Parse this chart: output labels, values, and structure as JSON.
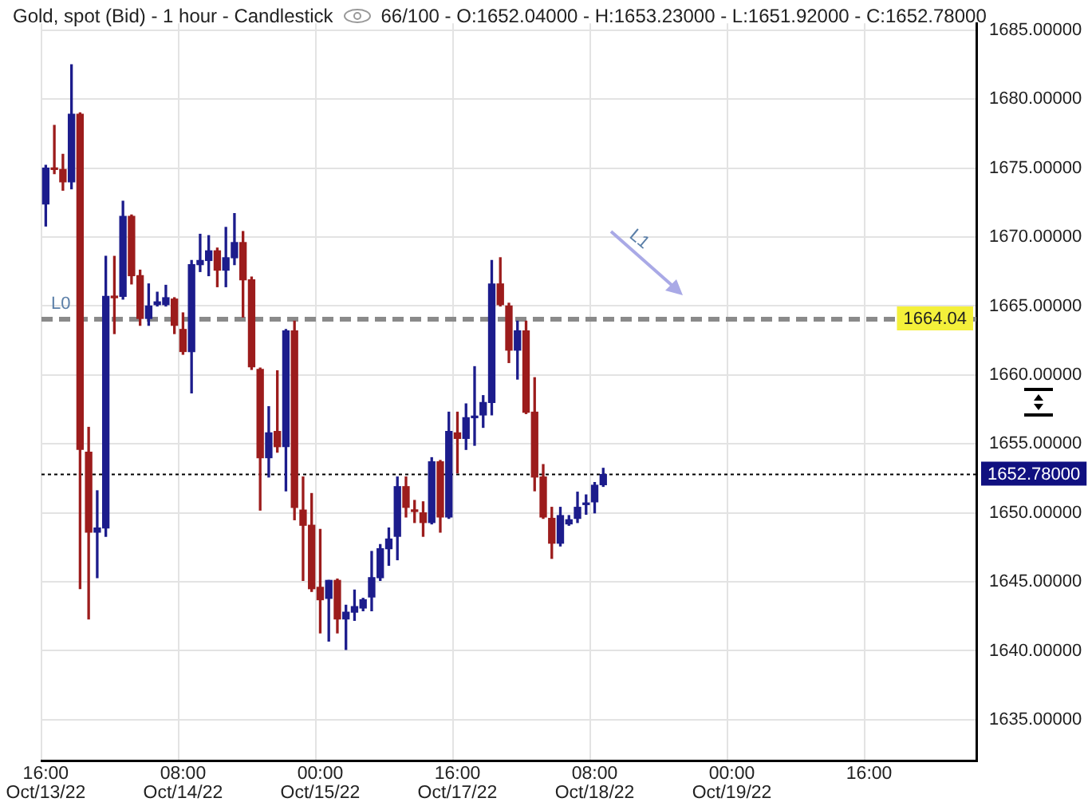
{
  "chart_data": {
    "type": "candlestick",
    "title": "Gold, spot (Bid) - 1 hour - Candlestick",
    "subtitle": "66/100 - O:1652.04000 - H:1653.23000 - L:1651.92000 - C:1652.78000",
    "categories": [
      "16:00 Oct/13/22",
      null,
      null,
      null,
      null,
      null,
      null,
      null,
      null,
      null,
      null,
      null,
      null,
      null,
      null,
      null,
      "08:00 Oct/14/22",
      null,
      null,
      null,
      null,
      null,
      null,
      null,
      null,
      null,
      null,
      null,
      null,
      null,
      null,
      null,
      "00:00 Oct/15/22",
      null,
      null,
      null,
      null,
      null,
      null,
      null,
      null,
      null,
      null,
      null,
      null,
      null,
      null,
      null,
      "16:00 Oct/17/22",
      null,
      null,
      null,
      null,
      null,
      null,
      null,
      null,
      null,
      null,
      null,
      null,
      null,
      null,
      null,
      "08:00 Oct/18/22",
      null,
      null,
      null,
      null,
      null,
      null,
      null,
      null,
      null,
      null,
      null,
      null,
      null,
      null,
      null,
      "00:00 Oct/19/22",
      null,
      null,
      null,
      null,
      null,
      null,
      null,
      null,
      null,
      null,
      null,
      null,
      null,
      null,
      null,
      "16:00",
      null,
      null,
      null,
      null,
      null,
      null,
      null,
      null,
      null,
      null,
      null,
      null
    ],
    "ohlc": [
      [
        1672.4,
        1675.2,
        1670.8,
        1675.0
      ],
      [
        1675.0,
        1678.1,
        1674.6,
        1674.9
      ],
      [
        1674.9,
        1676.0,
        1673.4,
        1674.0
      ],
      [
        1674.0,
        1682.5,
        1673.5,
        1678.9
      ],
      [
        1678.9,
        1679.0,
        1644.5,
        1654.6
      ],
      [
        1654.4,
        1656.2,
        1642.3,
        1648.6
      ],
      [
        1648.6,
        1651.6,
        1645.3,
        1648.9
      ],
      [
        1648.9,
        1668.6,
        1648.3,
        1665.7
      ],
      [
        1665.7,
        1668.6,
        1663.0,
        1665.6
      ],
      [
        1665.7,
        1672.6,
        1665.5,
        1671.5
      ],
      [
        1671.5,
        1671.6,
        1666.6,
        1667.2
      ],
      [
        1667.2,
        1667.6,
        1663.6,
        1664.1
      ],
      [
        1664.1,
        1666.6,
        1663.6,
        1665.0
      ],
      [
        1665.1,
        1666.0,
        1665.0,
        1665.3
      ],
      [
        1665.1,
        1666.5,
        1665.0,
        1665.6
      ],
      [
        1665.5,
        1665.6,
        1663.0,
        1663.6
      ],
      [
        1663.3,
        1664.5,
        1661.5,
        1661.7
      ],
      [
        1661.7,
        1668.3,
        1658.7,
        1668.0
      ],
      [
        1668.0,
        1670.2,
        1667.5,
        1668.3
      ],
      [
        1668.3,
        1670.1,
        1667.2,
        1669.0
      ],
      [
        1669.0,
        1669.2,
        1666.4,
        1667.6
      ],
      [
        1667.6,
        1670.7,
        1666.4,
        1668.5
      ],
      [
        1668.5,
        1671.7,
        1668.0,
        1669.6
      ],
      [
        1669.6,
        1670.4,
        1664.2,
        1666.9
      ],
      [
        1666.9,
        1667.1,
        1660.4,
        1660.6
      ],
      [
        1660.4,
        1660.5,
        1650.2,
        1654.0
      ],
      [
        1654.0,
        1657.7,
        1652.6,
        1655.8
      ],
      [
        1655.9,
        1660.3,
        1654.4,
        1654.8
      ],
      [
        1654.8,
        1663.3,
        1651.6,
        1663.2
      ],
      [
        1663.2,
        1663.9,
        1649.5,
        1650.4
      ],
      [
        1650.2,
        1652.6,
        1645.1,
        1649.1
      ],
      [
        1649.1,
        1651.4,
        1644.3,
        1644.5
      ],
      [
        1644.6,
        1648.8,
        1641.3,
        1643.7
      ],
      [
        1643.8,
        1645.1,
        1640.7,
        1645.1
      ],
      [
        1645.1,
        1645.2,
        1641.3,
        1642.3
      ],
      [
        1642.3,
        1643.3,
        1640.1,
        1642.8
      ],
      [
        1642.8,
        1644.4,
        1642.2,
        1643.2
      ],
      [
        1643.1,
        1643.8,
        1642.9,
        1643.7
      ],
      [
        1643.9,
        1647.2,
        1642.9,
        1645.3
      ],
      [
        1645.3,
        1647.7,
        1645.1,
        1647.4
      ],
      [
        1647.4,
        1648.9,
        1646.2,
        1648.1
      ],
      [
        1648.3,
        1652.6,
        1646.6,
        1651.9
      ],
      [
        1651.9,
        1652.6,
        1649.7,
        1650.4
      ],
      [
        1650.2,
        1650.9,
        1649.3,
        1650.1
      ],
      [
        1650.0,
        1650.8,
        1648.3,
        1649.3
      ],
      [
        1649.3,
        1654.0,
        1649.2,
        1653.7
      ],
      [
        1653.7,
        1653.8,
        1648.6,
        1649.7
      ],
      [
        1649.7,
        1657.3,
        1649.6,
        1655.9
      ],
      [
        1655.8,
        1657.3,
        1652.9,
        1655.4
      ],
      [
        1655.4,
        1657.9,
        1654.6,
        1656.9
      ],
      [
        1656.9,
        1660.6,
        1654.9,
        1657.0
      ],
      [
        1657.1,
        1658.5,
        1656.2,
        1658.0
      ],
      [
        1658.0,
        1668.3,
        1657.1,
        1666.6
      ],
      [
        1666.6,
        1668.5,
        1665.0,
        1665.1
      ],
      [
        1665.0,
        1665.2,
        1660.9,
        1661.8
      ],
      [
        1661.8,
        1663.9,
        1659.7,
        1663.2
      ],
      [
        1663.2,
        1663.9,
        1657.2,
        1657.3
      ],
      [
        1657.3,
        1659.8,
        1651.6,
        1652.6
      ],
      [
        1652.6,
        1653.5,
        1649.6,
        1649.7
      ],
      [
        1649.6,
        1650.4,
        1646.7,
        1647.8
      ],
      [
        1647.8,
        1650.4,
        1647.6,
        1649.8
      ],
      [
        1649.2,
        1649.8,
        1649.1,
        1649.5
      ],
      [
        1649.6,
        1651.5,
        1649.3,
        1650.4
      ],
      [
        1650.6,
        1651.3,
        1649.9,
        1650.7
      ],
      [
        1650.8,
        1652.2,
        1650.0,
        1652.0
      ],
      [
        1652.04,
        1653.23,
        1651.92,
        1652.78
      ],
      null,
      null,
      null,
      null,
      null,
      null,
      null,
      null,
      null,
      null,
      null,
      null,
      null,
      null,
      null,
      null,
      null,
      null,
      null,
      null,
      null,
      null,
      null,
      null,
      null,
      null,
      null,
      null,
      null,
      null,
      null,
      null,
      null,
      null,
      null,
      null,
      null,
      null,
      null,
      null,
      null,
      null,
      null
    ],
    "colors": [
      "#1c1c8c",
      "#9c1c1c",
      "#9c1c1c",
      "#1c1c8c",
      "#9c1c1c",
      "#9c1c1c",
      "#1c1c8c",
      "#1c1c8c",
      "#9c1c1c",
      "#1c1c8c",
      "#9c1c1c",
      "#9c1c1c",
      "#1c1c8c",
      "#1c1c8c",
      "#1c1c8c",
      "#9c1c1c",
      "#9c1c1c",
      "#1c1c8c",
      "#1c1c8c",
      "#1c1c8c",
      "#9c1c1c",
      "#1c1c8c",
      "#1c1c8c",
      "#9c1c1c",
      "#9c1c1c",
      "#9c1c1c",
      "#1c1c8c",
      "#9c1c1c",
      "#1c1c8c",
      "#9c1c1c",
      "#9c1c1c",
      "#9c1c1c",
      "#9c1c1c",
      "#1c1c8c",
      "#9c1c1c",
      "#1c1c8c",
      "#1c1c8c",
      "#1c1c8c",
      "#1c1c8c",
      "#1c1c8c",
      "#1c1c8c",
      "#1c1c8c",
      "#9c1c1c",
      "#9c1c1c",
      "#9c1c1c",
      "#1c1c8c",
      "#9c1c1c",
      "#1c1c8c",
      "#9c1c1c",
      "#1c1c8c",
      "#1c1c8c",
      "#1c1c8c",
      "#1c1c8c",
      "#9c1c1c",
      "#9c1c1c",
      "#1c1c8c",
      "#9c1c1c",
      "#9c1c1c",
      "#9c1c1c",
      "#9c1c1c",
      "#1c1c8c",
      "#1c1c8c",
      "#1c1c8c",
      "#1c1c8c",
      "#1c1c8c",
      "#1c1c8c",
      null,
      null,
      null,
      null,
      null,
      null,
      null,
      null,
      null,
      null,
      null,
      null,
      null,
      null,
      null,
      null,
      null,
      null,
      null,
      null,
      null,
      null,
      null,
      null,
      null,
      null,
      null,
      null,
      null,
      null,
      null,
      null,
      null,
      null,
      null,
      null,
      null,
      null,
      null,
      null,
      null,
      null,
      null
    ],
    "ylim": [
      1632,
      1685.5
    ],
    "yticks": [
      {
        "value": 1635,
        "label": "1635.00000"
      },
      {
        "value": 1640,
        "label": "1640.00000"
      },
      {
        "value": 1645,
        "label": "1645.00000"
      },
      {
        "value": 1650,
        "label": "1650.00000"
      },
      {
        "value": 1655,
        "label": "1655.00000"
      },
      {
        "value": 1660,
        "label": "1660.00000"
      },
      {
        "value": 1665,
        "label": "1665.00000"
      },
      {
        "value": 1670,
        "label": "1670.00000"
      },
      {
        "value": 1675,
        "label": "1675.00000"
      },
      {
        "value": 1680,
        "label": "1680.00000"
      },
      {
        "value": 1685,
        "label": "1685.00000"
      }
    ],
    "grid": true,
    "ref_lines": [
      {
        "axis": "y",
        "value": 1664.04,
        "label": "L0",
        "color": "#8a8a8a",
        "line_style": "dashed"
      },
      {
        "axis": "y",
        "value": 1652.78,
        "color": "#000000",
        "line_style": "dotted"
      }
    ],
    "annotations": [
      "L1",
      "1664.04",
      "1652.78000"
    ]
  }
}
